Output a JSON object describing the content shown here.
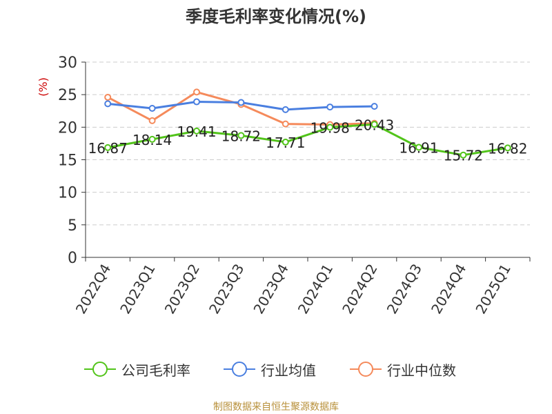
{
  "title": "季度毛利率变化情况(%)",
  "unit_label": "(%)",
  "source": "制图数据来自恒生聚源数据库",
  "colors": {
    "company": "#52c41a",
    "industry_avg": "#4a7fe0",
    "industry_median": "#f58a5b",
    "axis": "#333333",
    "grid": "#cccccc",
    "unit": "#cc0000"
  },
  "chart_data": {
    "type": "line",
    "categories": [
      "2022Q4",
      "2023Q1",
      "2023Q2",
      "2023Q3",
      "2023Q4",
      "2024Q1",
      "2024Q2",
      "2024Q3",
      "2024Q4",
      "2025Q1"
    ],
    "ylim": [
      0,
      30
    ],
    "yticks": [
      0,
      5,
      10,
      15,
      20,
      25,
      30
    ],
    "grid": true,
    "legend_position": "bottom",
    "series": [
      {
        "name": "公司毛利率",
        "values": [
          16.87,
          18.14,
          19.41,
          18.72,
          17.71,
          19.98,
          20.43,
          16.91,
          15.72,
          16.82
        ],
        "labels": [
          "16.87",
          "18.14",
          "19.41",
          "18.72",
          "17.71",
          "19.98",
          "20.43",
          "16.91",
          "15.72",
          "16.82"
        ]
      },
      {
        "name": "行业均值",
        "values": [
          23.6,
          22.9,
          23.9,
          23.8,
          22.7,
          23.1,
          23.2,
          null,
          null,
          null
        ]
      },
      {
        "name": "行业中位数",
        "values": [
          24.6,
          21.0,
          25.4,
          23.5,
          20.5,
          20.4,
          20.6,
          null,
          null,
          null
        ]
      }
    ]
  }
}
